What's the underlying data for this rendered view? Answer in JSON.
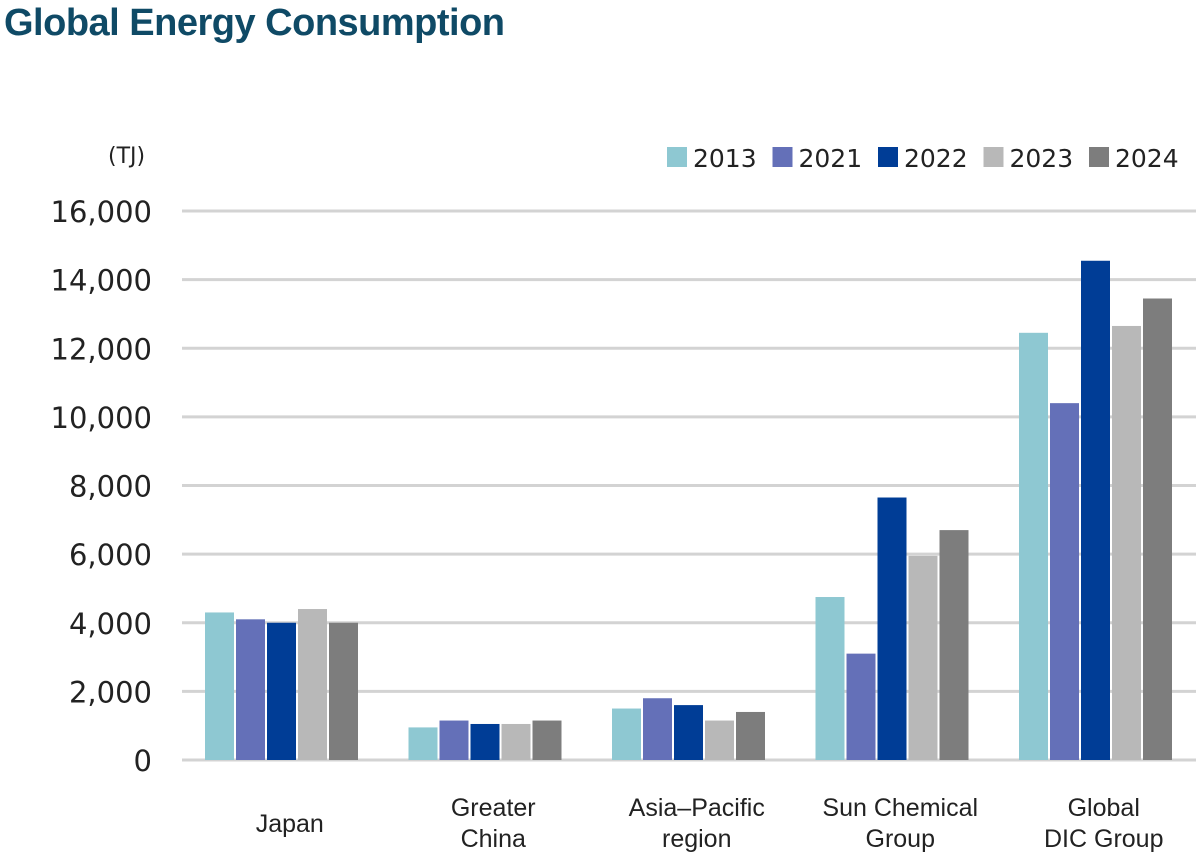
{
  "chart_data": {
    "type": "bar",
    "title": "Global Energy Consumption",
    "ylabel": "(TJ)",
    "xlabel": "",
    "ylim": [
      0,
      16000
    ],
    "yticks": [
      0,
      2000,
      4000,
      6000,
      8000,
      10000,
      12000,
      14000,
      16000
    ],
    "ytick_labels": [
      "0",
      "2,000",
      "4,000",
      "6,000",
      "8,000",
      "10,000",
      "12,000",
      "14,000",
      "16,000"
    ],
    "grid": true,
    "legend_position": "top-right",
    "categories": [
      [
        "Japan"
      ],
      [
        "Greater",
        "China"
      ],
      [
        "Asia–Pacific",
        "region"
      ],
      [
        "Sun Chemical",
        "Group"
      ],
      [
        "Global",
        "DIC Group"
      ]
    ],
    "series": [
      {
        "name": "2013",
        "color": "#8ec8d2",
        "values": [
          4300,
          950,
          1500,
          4750,
          12450
        ]
      },
      {
        "name": "2021",
        "color": "#6470b8",
        "values": [
          4100,
          1150,
          1800,
          3100,
          10400
        ]
      },
      {
        "name": "2022",
        "color": "#003d96",
        "values": [
          4000,
          1050,
          1600,
          7650,
          14550
        ]
      },
      {
        "name": "2023",
        "color": "#b8b8b8",
        "values": [
          4400,
          1050,
          1150,
          5950,
          12650
        ]
      },
      {
        "name": "2024",
        "color": "#7d7d7d",
        "values": [
          4000,
          1150,
          1400,
          6700,
          13450
        ]
      }
    ]
  }
}
